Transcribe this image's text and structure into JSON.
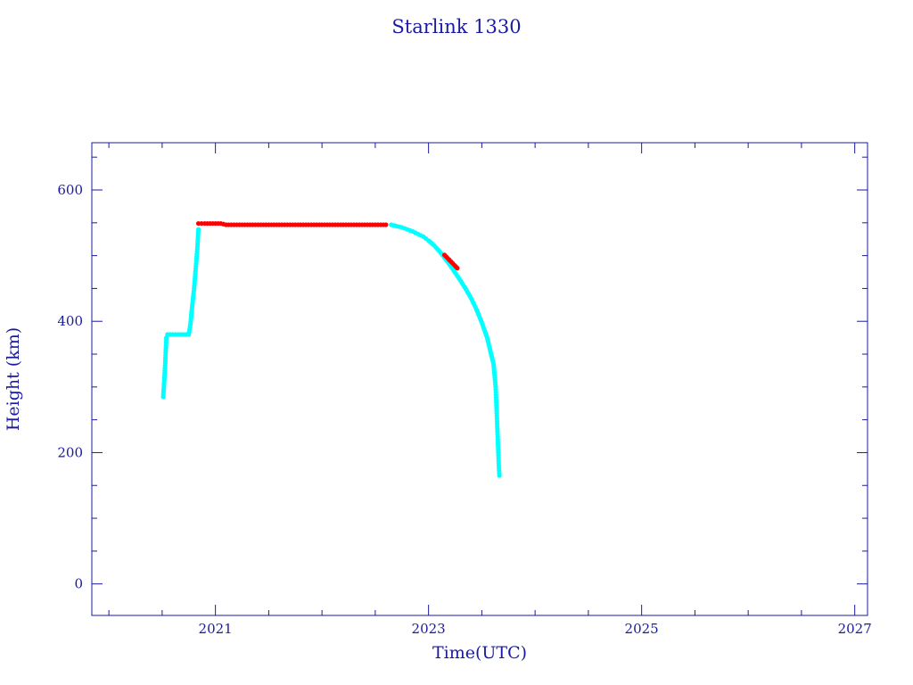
{
  "chart_data": {
    "type": "scatter",
    "title": "Starlink 1330",
    "xlabel": "Time(UTC)",
    "ylabel": "Height (km)",
    "xlim": [
      2019.84,
      2027.12
    ],
    "ylim": [
      -48,
      672
    ],
    "x_ticks": [
      "2021",
      "2023",
      "2025",
      "2027"
    ],
    "y_ticks": [
      "0",
      "200",
      "400",
      "600"
    ],
    "grid": false,
    "axis_color": "#1a1aa0",
    "series": [
      {
        "color": "#00ffff",
        "points": [
          [
            2020.51,
            285
          ],
          [
            2020.52,
            310
          ],
          [
            2020.53,
            340
          ],
          [
            2020.535,
            360
          ],
          [
            2020.54,
            375
          ],
          [
            2020.55,
            380
          ],
          [
            2020.6,
            380
          ],
          [
            2020.65,
            380
          ],
          [
            2020.7,
            380
          ],
          [
            2020.75,
            380
          ],
          [
            2020.765,
            395
          ],
          [
            2020.78,
            420
          ],
          [
            2020.8,
            450
          ],
          [
            2020.815,
            480
          ],
          [
            2020.83,
            510
          ],
          [
            2020.84,
            540
          ],
          [
            2022.65,
            547
          ],
          [
            2022.7,
            545
          ],
          [
            2022.75,
            543
          ],
          [
            2022.8,
            540
          ],
          [
            2022.85,
            537
          ],
          [
            2022.9,
            533
          ],
          [
            2022.95,
            529
          ],
          [
            2023.0,
            523
          ],
          [
            2023.05,
            516
          ],
          [
            2023.1,
            507
          ],
          [
            2023.15,
            497
          ],
          [
            2023.2,
            486
          ],
          [
            2023.25,
            474
          ],
          [
            2023.3,
            462
          ],
          [
            2023.35,
            449
          ],
          [
            2023.4,
            435
          ],
          [
            2023.45,
            418
          ],
          [
            2023.5,
            398
          ],
          [
            2023.55,
            375
          ],
          [
            2023.58,
            355
          ],
          [
            2023.61,
            335
          ],
          [
            2023.62,
            318
          ],
          [
            2023.63,
            300
          ],
          [
            2023.635,
            280
          ],
          [
            2023.64,
            260
          ],
          [
            2023.645,
            240
          ],
          [
            2023.65,
            220
          ],
          [
            2023.655,
            200
          ],
          [
            2023.66,
            180
          ],
          [
            2023.665,
            165
          ]
        ]
      },
      {
        "color": "#ff0000",
        "points": [
          [
            2020.84,
            549
          ],
          [
            2020.9,
            549
          ],
          [
            2021.0,
            549
          ],
          [
            2021.05,
            549
          ],
          [
            2021.1,
            547
          ],
          [
            2021.2,
            547
          ],
          [
            2021.3,
            547
          ],
          [
            2021.4,
            547
          ],
          [
            2021.5,
            547
          ],
          [
            2021.6,
            547
          ],
          [
            2021.7,
            547
          ],
          [
            2021.8,
            547
          ],
          [
            2021.9,
            547
          ],
          [
            2022.0,
            547
          ],
          [
            2022.1,
            547
          ],
          [
            2022.2,
            547
          ],
          [
            2022.3,
            547
          ],
          [
            2022.4,
            547
          ],
          [
            2022.5,
            547
          ],
          [
            2022.6,
            547
          ],
          [
            2023.15,
            501
          ],
          [
            2023.27,
            481
          ]
        ]
      }
    ]
  }
}
